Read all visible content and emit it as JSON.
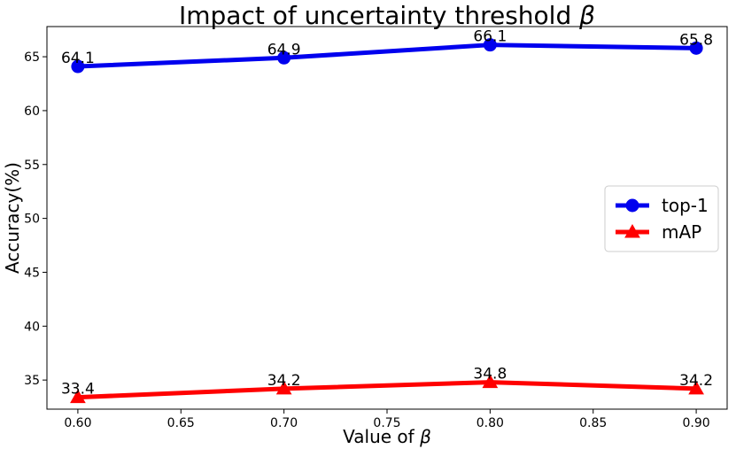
{
  "chart_data": {
    "type": "line",
    "title": "Impact of uncertainty threshold",
    "title_symbol": "β",
    "xlabel": "Value of",
    "xlabel_symbol": "β",
    "ylabel": "Accuracy(%)",
    "x": [
      0.6,
      0.7,
      0.8,
      0.9
    ],
    "xlim": [
      0.585,
      0.915
    ],
    "ylim": [
      32.3,
      67.8
    ],
    "xticks": [
      "0.60",
      "0.65",
      "0.70",
      "0.75",
      "0.80",
      "0.85",
      "0.90"
    ],
    "yticks": [
      "35",
      "40",
      "45",
      "50",
      "55",
      "60",
      "65"
    ],
    "legend_position": "center-right",
    "series": [
      {
        "name": "top-1",
        "values": [
          64.1,
          64.9,
          66.1,
          65.8
        ],
        "labels": [
          "64.1",
          "64.9",
          "66.1",
          "65.8"
        ],
        "color": "#0000ee",
        "marker": "circle"
      },
      {
        "name": "mAP",
        "values": [
          33.4,
          34.2,
          34.8,
          34.2
        ],
        "labels": [
          "33.4",
          "34.2",
          "34.8",
          "34.2"
        ],
        "color": "#ff0000",
        "marker": "triangle"
      }
    ]
  }
}
